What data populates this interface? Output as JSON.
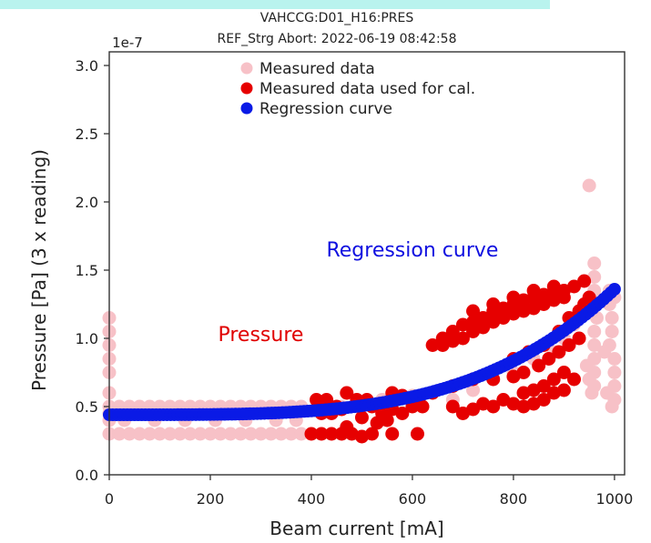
{
  "chart_data": {
    "type": "scatter",
    "title": [
      "VAHCCG:D01_H16:PRES",
      "REF_Strg Abort: 2022-06-19 08:42:58"
    ],
    "xlabel": "Beam current [mA]",
    "ylabel": "Pressure [Pa] (3 x reading)",
    "y_scale_label": "1e-7",
    "xlim": [
      0,
      1020
    ],
    "ylim": [
      0.0,
      3.1
    ],
    "xticks": [
      0,
      200,
      400,
      600,
      800,
      1000
    ],
    "xtick_labels": [
      "0",
      "200",
      "400",
      "600",
      "800",
      "1000"
    ],
    "yticks": [
      0.0,
      0.5,
      1.0,
      1.5,
      2.0,
      2.5,
      3.0
    ],
    "ytick_labels": [
      "0.0",
      "0.5",
      "1.0",
      "1.5",
      "2.0",
      "2.5",
      "3.0"
    ],
    "legend_position": "top-left",
    "annotations": [
      {
        "text": "Regression curve",
        "color": "#1010e0",
        "x": 600,
        "y": 1.6
      },
      {
        "text": "Pressure",
        "color": "#e00000",
        "x": 300,
        "y": 0.98
      }
    ],
    "series": [
      {
        "name": "Measured data",
        "color": "#f7c1c7",
        "points": [
          [
            0,
            1.15
          ],
          [
            0,
            1.05
          ],
          [
            0,
            0.95
          ],
          [
            0,
            0.85
          ],
          [
            0,
            0.75
          ],
          [
            0,
            0.6
          ],
          [
            0,
            0.5
          ],
          [
            0,
            0.45
          ],
          [
            0,
            0.4
          ],
          [
            0,
            0.3
          ],
          [
            20,
            0.3
          ],
          [
            40,
            0.3
          ],
          [
            60,
            0.3
          ],
          [
            80,
            0.3
          ],
          [
            100,
            0.3
          ],
          [
            120,
            0.3
          ],
          [
            140,
            0.3
          ],
          [
            160,
            0.3
          ],
          [
            180,
            0.3
          ],
          [
            200,
            0.3
          ],
          [
            220,
            0.3
          ],
          [
            240,
            0.3
          ],
          [
            260,
            0.3
          ],
          [
            280,
            0.3
          ],
          [
            300,
            0.3
          ],
          [
            320,
            0.3
          ],
          [
            340,
            0.3
          ],
          [
            360,
            0.3
          ],
          [
            380,
            0.3
          ],
          [
            20,
            0.5
          ],
          [
            40,
            0.5
          ],
          [
            60,
            0.5
          ],
          [
            80,
            0.5
          ],
          [
            100,
            0.5
          ],
          [
            120,
            0.5
          ],
          [
            140,
            0.5
          ],
          [
            160,
            0.5
          ],
          [
            180,
            0.5
          ],
          [
            200,
            0.5
          ],
          [
            220,
            0.5
          ],
          [
            240,
            0.5
          ],
          [
            260,
            0.5
          ],
          [
            280,
            0.5
          ],
          [
            300,
            0.5
          ],
          [
            320,
            0.5
          ],
          [
            340,
            0.5
          ],
          [
            360,
            0.5
          ],
          [
            380,
            0.5
          ],
          [
            30,
            0.4
          ],
          [
            90,
            0.4
          ],
          [
            150,
            0.4
          ],
          [
            210,
            0.4
          ],
          [
            270,
            0.4
          ],
          [
            330,
            0.4
          ],
          [
            370,
            0.4
          ],
          [
            420,
            0.5
          ],
          [
            460,
            0.5
          ],
          [
            500,
            0.52
          ],
          [
            540,
            0.55
          ],
          [
            600,
            0.58
          ],
          [
            640,
            0.6
          ],
          [
            680,
            0.55
          ],
          [
            720,
            0.62
          ],
          [
            760,
            0.7
          ],
          [
            800,
            0.75
          ],
          [
            840,
            0.85
          ],
          [
            880,
            0.9
          ],
          [
            900,
            1.0
          ],
          [
            920,
            1.1
          ],
          [
            950,
            2.12
          ],
          [
            960,
            1.55
          ],
          [
            960,
            1.45
          ],
          [
            960,
            1.35
          ],
          [
            965,
            1.25
          ],
          [
            965,
            1.15
          ],
          [
            960,
            1.05
          ],
          [
            960,
            0.95
          ],
          [
            960,
            0.85
          ],
          [
            960,
            0.75
          ],
          [
            960,
            0.65
          ],
          [
            955,
            0.6
          ],
          [
            950,
            0.7
          ],
          [
            945,
            0.8
          ],
          [
            990,
            1.35
          ],
          [
            990,
            1.25
          ],
          [
            995,
            1.15
          ],
          [
            995,
            1.05
          ],
          [
            990,
            0.95
          ],
          [
            1000,
            0.85
          ],
          [
            1000,
            0.75
          ],
          [
            1000,
            0.65
          ],
          [
            1000,
            0.55
          ],
          [
            995,
            0.5
          ],
          [
            985,
            0.6
          ],
          [
            980,
            0.9
          ],
          [
            1000,
            1.3
          ]
        ]
      },
      {
        "name": "Measured data used for cal.",
        "color": "#e60000",
        "points": [
          [
            400,
            0.3
          ],
          [
            420,
            0.3
          ],
          [
            440,
            0.3
          ],
          [
            460,
            0.3
          ],
          [
            480,
            0.3
          ],
          [
            500,
            0.28
          ],
          [
            520,
            0.3
          ],
          [
            560,
            0.3
          ],
          [
            610,
            0.3
          ],
          [
            410,
            0.55
          ],
          [
            430,
            0.55
          ],
          [
            450,
            0.5
          ],
          [
            470,
            0.6
          ],
          [
            490,
            0.55
          ],
          [
            510,
            0.55
          ],
          [
            420,
            0.45
          ],
          [
            440,
            0.45
          ],
          [
            460,
            0.48
          ],
          [
            520,
            0.5
          ],
          [
            540,
            0.45
          ],
          [
            560,
            0.48
          ],
          [
            580,
            0.45
          ],
          [
            600,
            0.5
          ],
          [
            620,
            0.5
          ],
          [
            560,
            0.6
          ],
          [
            580,
            0.58
          ],
          [
            500,
            0.42
          ],
          [
            530,
            0.38
          ],
          [
            550,
            0.4
          ],
          [
            470,
            0.35
          ],
          [
            640,
            0.95
          ],
          [
            660,
            1.0
          ],
          [
            680,
            1.05
          ],
          [
            700,
            1.1
          ],
          [
            720,
            1.12
          ],
          [
            740,
            1.15
          ],
          [
            760,
            1.2
          ],
          [
            780,
            1.22
          ],
          [
            800,
            1.25
          ],
          [
            820,
            1.28
          ],
          [
            840,
            1.3
          ],
          [
            860,
            1.32
          ],
          [
            880,
            1.33
          ],
          [
            900,
            1.35
          ],
          [
            920,
            1.38
          ],
          [
            940,
            1.42
          ],
          [
            700,
            1.0
          ],
          [
            720,
            1.05
          ],
          [
            740,
            1.08
          ],
          [
            760,
            1.12
          ],
          [
            780,
            1.15
          ],
          [
            800,
            1.18
          ],
          [
            820,
            1.2
          ],
          [
            840,
            1.22
          ],
          [
            860,
            1.25
          ],
          [
            880,
            1.28
          ],
          [
            900,
            1.3
          ],
          [
            660,
            0.95
          ],
          [
            680,
            0.98
          ],
          [
            720,
            1.2
          ],
          [
            760,
            1.25
          ],
          [
            800,
            1.3
          ],
          [
            840,
            1.35
          ],
          [
            880,
            1.38
          ],
          [
            640,
            0.6
          ],
          [
            680,
            0.65
          ],
          [
            720,
            0.7
          ],
          [
            760,
            0.7
          ],
          [
            800,
            0.72
          ],
          [
            820,
            0.75
          ],
          [
            850,
            0.8
          ],
          [
            870,
            0.85
          ],
          [
            890,
            0.9
          ],
          [
            910,
            0.95
          ],
          [
            930,
            1.0
          ],
          [
            900,
            0.75
          ],
          [
            880,
            0.7
          ],
          [
            860,
            0.65
          ],
          [
            840,
            0.62
          ],
          [
            820,
            0.6
          ],
          [
            780,
            0.55
          ],
          [
            800,
            0.52
          ],
          [
            820,
            0.5
          ],
          [
            840,
            0.52
          ],
          [
            860,
            0.55
          ],
          [
            880,
            0.6
          ],
          [
            900,
            0.62
          ],
          [
            920,
            0.7
          ],
          [
            760,
            0.5
          ],
          [
            740,
            0.52
          ],
          [
            720,
            0.48
          ],
          [
            700,
            0.45
          ],
          [
            680,
            0.5
          ],
          [
            800,
            0.85
          ],
          [
            830,
            0.9
          ],
          [
            860,
            0.95
          ],
          [
            890,
            1.05
          ],
          [
            910,
            1.15
          ],
          [
            930,
            1.2
          ],
          [
            940,
            1.25
          ],
          [
            950,
            1.3
          ]
        ]
      },
      {
        "name": "Regression curve",
        "color": "#0a1ae6",
        "function": "y = 0.44 + 0.92 * (x/1000)^3.8",
        "x_range": [
          0,
          1000
        ],
        "n_points": 140
      }
    ]
  }
}
